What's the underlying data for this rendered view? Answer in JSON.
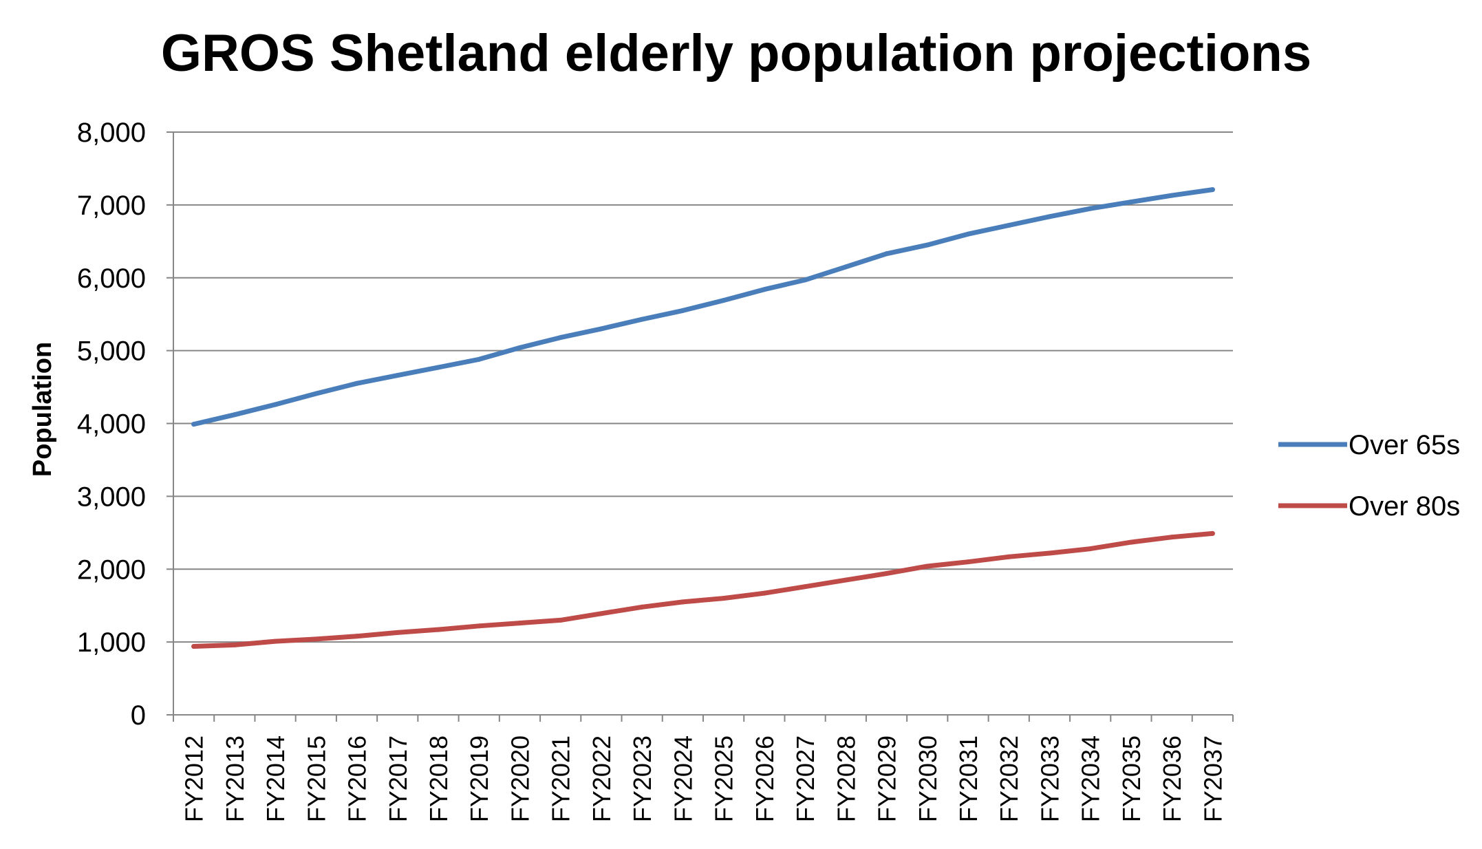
{
  "chart_data": {
    "type": "line",
    "title": "GROS Shetland elderly population projections",
    "xlabel": "",
    "ylabel": "Population",
    "ylim": [
      0,
      8000
    ],
    "yticks": [
      0,
      1000,
      2000,
      3000,
      4000,
      5000,
      6000,
      7000,
      8000
    ],
    "ytick_labels": [
      "0",
      "1,000",
      "2,000",
      "3,000",
      "4,000",
      "5,000",
      "6,000",
      "7,000",
      "8,000"
    ],
    "grid": "horizontal",
    "legend_position": "right",
    "categories": [
      "FY2012",
      "FY2013",
      "FY2014",
      "FY2015",
      "FY2016",
      "FY2017",
      "FY2018",
      "FY2019",
      "FY2020",
      "FY2021",
      "FY2022",
      "FY2023",
      "FY2024",
      "FY2025",
      "FY2026",
      "FY2027",
      "FY2028",
      "FY2029",
      "FY2030",
      "FY2031",
      "FY2032",
      "FY2033",
      "FY2034",
      "FY2035",
      "FY2036",
      "FY2037"
    ],
    "series": [
      {
        "name": "Over 65s",
        "color": "#4a7ebb",
        "values": [
          3990,
          4120,
          4260,
          4410,
          4550,
          4660,
          4770,
          4880,
          5040,
          5180,
          5300,
          5430,
          5550,
          5690,
          5840,
          5970,
          6150,
          6330,
          6450,
          6600,
          6720,
          6840,
          6950,
          7040,
          7130,
          7210
        ]
      },
      {
        "name": "Over 80s",
        "color": "#be4b48",
        "values": [
          940,
          960,
          1010,
          1040,
          1080,
          1130,
          1170,
          1220,
          1260,
          1300,
          1390,
          1480,
          1550,
          1600,
          1670,
          1760,
          1850,
          1940,
          2040,
          2100,
          2170,
          2220,
          2280,
          2370,
          2440,
          2490
        ]
      }
    ]
  }
}
